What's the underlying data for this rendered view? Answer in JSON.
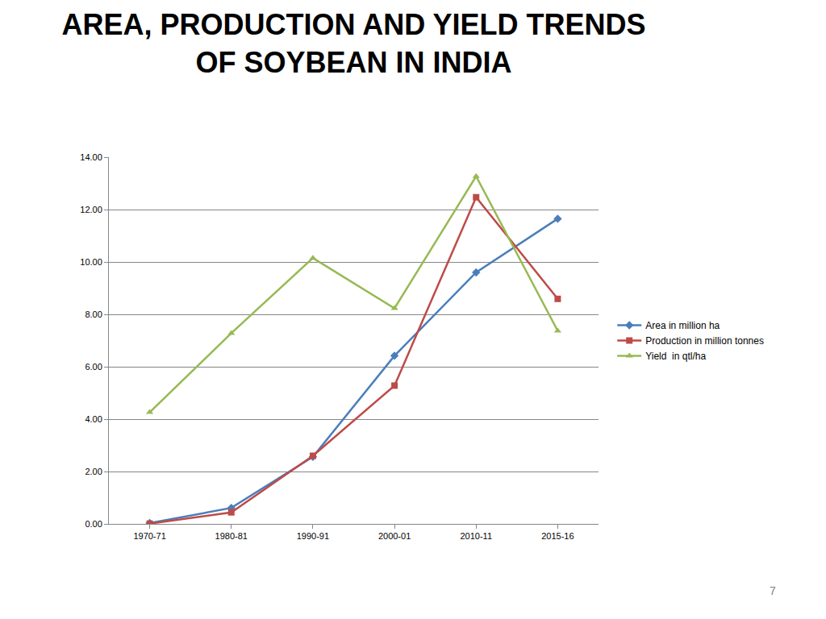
{
  "chart_data": {
    "type": "line",
    "title": "AREA, PRODUCTION AND YIELD TRENDS\nOF SOYBEAN IN INDIA",
    "categories": [
      "1970-71",
      "1980-81",
      "1990-91",
      "2000-01",
      "2010-11",
      "2015-16"
    ],
    "series": [
      {
        "name": "Area in million ha",
        "color": "#4a7ebb",
        "marker": "diamond",
        "values": [
          0.03,
          0.61,
          2.56,
          6.42,
          9.6,
          11.65
        ]
      },
      {
        "name": "Production in million tonnes",
        "color": "#be4b48",
        "marker": "square",
        "values": [
          0.01,
          0.44,
          2.6,
          5.28,
          12.47,
          8.59
        ]
      },
      {
        "name": "Yield  in qtl/ha",
        "color": "#98b954",
        "marker": "triangle-up",
        "values": [
          4.26,
          7.28,
          10.15,
          8.23,
          13.27,
          7.37
        ]
      }
    ],
    "ylim": [
      0,
      14
    ],
    "yticks": [
      {
        "value": 0,
        "label": "0.00"
      },
      {
        "value": 2,
        "label": "2.00"
      },
      {
        "value": 4,
        "label": "4.00"
      },
      {
        "value": 6,
        "label": "6.00"
      },
      {
        "value": 8,
        "label": "8.00"
      },
      {
        "value": 10,
        "label": "10.00"
      },
      {
        "value": 12,
        "label": "12.00"
      },
      {
        "value": 14,
        "label": "14.00"
      }
    ],
    "grid": true,
    "legend": "right",
    "annotations": [
      {
        "text": "7"
      }
    ]
  }
}
